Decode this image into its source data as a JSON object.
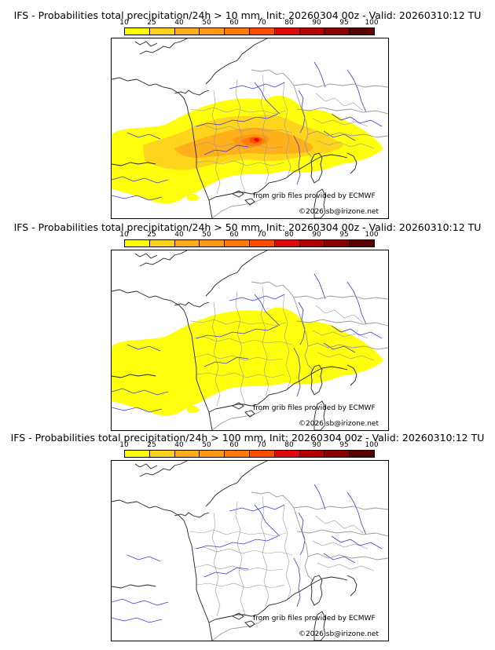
{
  "colors": {
    "river": "#3a3ad8",
    "coast": "#222222",
    "border": "#999999",
    "outline": "#000000"
  },
  "colorscale": {
    "labels": [
      "10",
      "25",
      "40",
      "50",
      "60",
      "70",
      "80",
      "90",
      "95",
      "100"
    ],
    "colors": [
      "#ffff00",
      "#ffd21e",
      "#ffae1a",
      "#ff9914",
      "#ff7a0a",
      "#ff4d00",
      "#e00a0a",
      "#b40000",
      "#8a0000",
      "#5a0000"
    ]
  },
  "panels": [
    {
      "title": "IFS - Probabilities total precipitation/24h > 10 mm, Init: 20260304 00z - Valid: 20260310:12 TU",
      "credit_source": "from grib files provided by ECMWF",
      "credit_copyright": "©2026 sb@irizone.net",
      "precip_levels": [
        "10",
        "25",
        "40",
        "50",
        "60",
        "70",
        "80"
      ]
    },
    {
      "title": "IFS - Probabilities total precipitation/24h > 50 mm, Init: 20260304 00z - Valid: 20260310:12 TU",
      "credit_source": "from grib files provided by ECMWF",
      "credit_copyright": "©2026 sb@irizone.net",
      "precip_levels": [
        "10"
      ]
    },
    {
      "title": "IFS - Probabilities total precipitation/24h > 100 mm, Init: 20260304 00z - Valid: 20260310:12 TU",
      "credit_source": "from grib files provided by ECMWF",
      "credit_copyright": "©2026 sb@irizone.net",
      "precip_levels": []
    }
  ]
}
